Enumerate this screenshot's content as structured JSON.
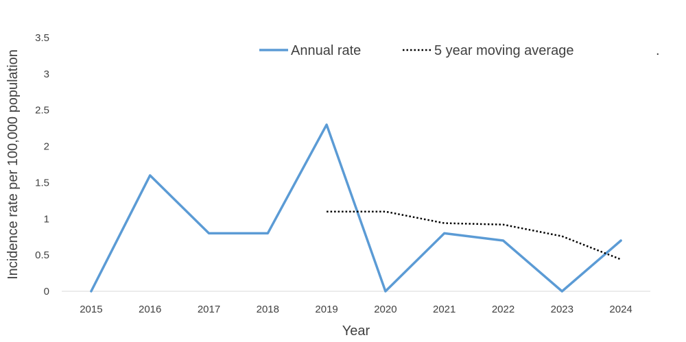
{
  "chart_data": {
    "type": "line",
    "title": "",
    "xlabel": "Year",
    "ylabel": "Incidence rate per 100,000 population",
    "x": [
      "2015",
      "2016",
      "2017",
      "2018",
      "2019",
      "2020",
      "2021",
      "2022",
      "2023",
      "2024"
    ],
    "ylim": [
      0,
      3.5
    ],
    "yticks": [
      "0",
      "0.5",
      "1",
      "1.5",
      "2",
      "2.5",
      "3",
      "3.5"
    ],
    "grid": false,
    "legend_position": "top-right",
    "legend_trailing_mark": ".",
    "series": [
      {
        "name": "Annual rate",
        "style": "solid",
        "color": "#5B9BD5",
        "values": [
          0,
          1.6,
          0.8,
          0.8,
          2.3,
          0,
          0.8,
          0.7,
          0,
          0.7
        ]
      },
      {
        "name": "5 year moving average",
        "style": "dotted",
        "color": "#000000",
        "values": [
          null,
          null,
          null,
          null,
          1.1,
          1.1,
          0.94,
          0.92,
          0.76,
          0.44
        ]
      }
    ]
  }
}
